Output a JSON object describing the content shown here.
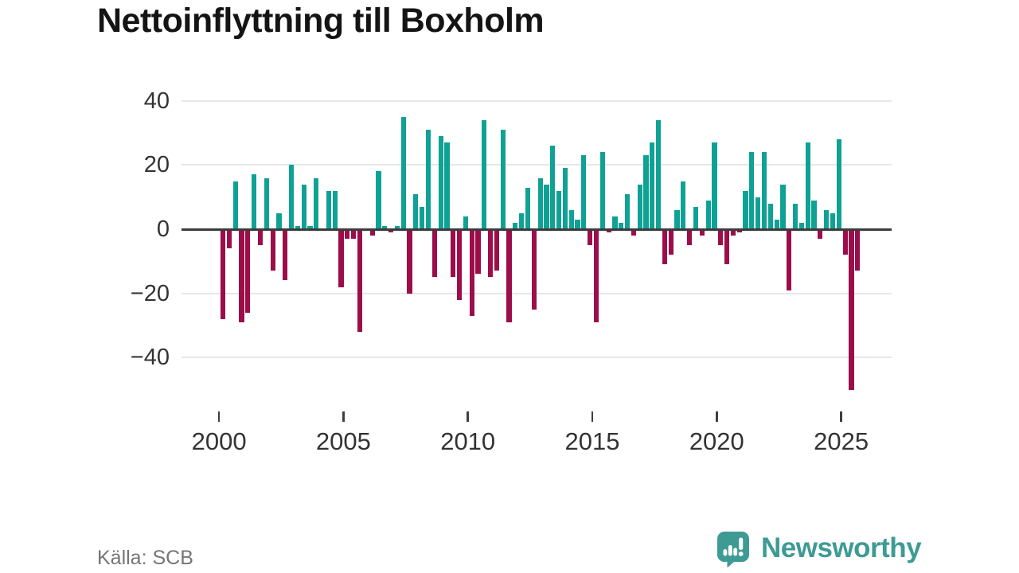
{
  "title": "Nettoinflyttning till Boxholm",
  "source": "Källa: SCB",
  "brand": {
    "name": "Newsworthy",
    "color": "#3e9b94",
    "icon": "newsworthy-speech-bubble-bar-chart-icon"
  },
  "chart_data": {
    "type": "bar",
    "title": "Nettoinflyttning till Boxholm",
    "frequency": "quarterly",
    "start": "2000-Q1",
    "end": "2025-Q3",
    "values": [
      -28,
      -6,
      15,
      -29,
      -26,
      17,
      -5,
      16,
      -13,
      5,
      -16,
      20,
      1,
      14,
      1,
      16,
      0,
      12,
      12,
      -18,
      -3,
      -3,
      -32,
      0,
      -2,
      18,
      1,
      -1,
      1,
      35,
      -20,
      11,
      7,
      31,
      -15,
      29,
      27,
      -15,
      -22,
      4,
      -27,
      -14,
      34,
      -15,
      -13,
      31,
      -29,
      2,
      5,
      13,
      -25,
      16,
      14,
      26,
      12,
      19,
      6,
      3,
      23,
      -5,
      -29,
      24,
      -1,
      4,
      2,
      11,
      -2,
      14,
      23,
      27,
      34,
      -11,
      -8,
      6,
      15,
      -5,
      7,
      -2,
      9,
      27,
      -5,
      -11,
      -2,
      -1,
      12,
      24,
      10,
      24,
      8,
      3,
      14,
      -19,
      8,
      2,
      27,
      9,
      -3,
      6,
      5,
      28,
      -8,
      -50,
      -13
    ],
    "x_tick_years": [
      2000,
      2005,
      2010,
      2015,
      2020,
      2025
    ],
    "y_ticks": [
      40,
      20,
      0,
      -20,
      -40
    ],
    "ylim": [
      -52,
      44
    ],
    "grid": true,
    "legend": "none",
    "positive_color": "#0fa294",
    "negative_color": "#9c0d49",
    "zero_line_color": "#3b3b3b",
    "grid_color": "#e7e7e7",
    "axis_text_color": "#333333"
  }
}
